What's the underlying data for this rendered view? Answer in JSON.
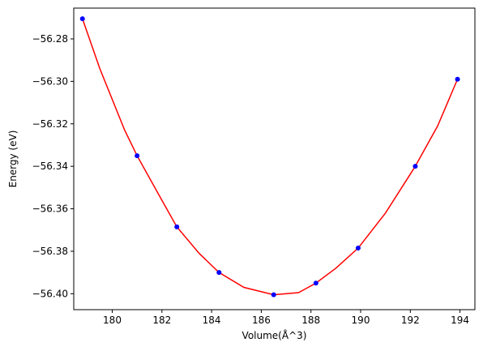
{
  "chart_data": {
    "type": "scatter",
    "xlabel": "Volume(Å^3)",
    "ylabel": "Energy (eV)",
    "xlim": [
      178.45,
      194.6
    ],
    "ylim": [
      -56.4075,
      -56.2655
    ],
    "x_ticks": [
      {
        "value": 180,
        "label": "180"
      },
      {
        "value": 182,
        "label": "182"
      },
      {
        "value": 184,
        "label": "184"
      },
      {
        "value": 186,
        "label": "186"
      },
      {
        "value": 188,
        "label": "188"
      },
      {
        "value": 190,
        "label": "190"
      },
      {
        "value": 192,
        "label": "192"
      },
      {
        "value": 194,
        "label": "194"
      }
    ],
    "y_ticks": [
      {
        "value": -56.28,
        "label": "−56.28"
      },
      {
        "value": -56.3,
        "label": "−56.30"
      },
      {
        "value": -56.32,
        "label": "−56.32"
      },
      {
        "value": -56.34,
        "label": "−56.34"
      },
      {
        "value": -56.36,
        "label": "−56.36"
      },
      {
        "value": -56.38,
        "label": "−56.38"
      },
      {
        "value": -56.4,
        "label": "−56.40"
      }
    ],
    "grid": false,
    "series": [
      {
        "kind": "points",
        "color": "#0000ff",
        "x": [
          178.8,
          181.0,
          182.6,
          184.3,
          186.5,
          188.2,
          189.9,
          192.2,
          193.9
        ],
        "y": [
          -56.2705,
          -56.335,
          -56.3685,
          -56.39,
          -56.4005,
          -56.395,
          -56.3785,
          -56.34,
          -56.299
        ]
      },
      {
        "kind": "fit",
        "color": "#ff0000",
        "x": [
          178.8,
          179.5,
          180.5,
          181.0,
          182.0,
          182.6,
          183.5,
          184.3,
          185.3,
          186.5,
          187.5,
          188.2,
          189.0,
          189.9,
          191.0,
          192.2,
          193.1,
          193.9
        ],
        "y": [
          -56.2705,
          -56.294,
          -56.323,
          -56.335,
          -56.356,
          -56.3685,
          -56.381,
          -56.39,
          -56.397,
          -56.4005,
          -56.3995,
          -56.395,
          -56.388,
          -56.3785,
          -56.362,
          -56.34,
          -56.321,
          -56.299
        ]
      }
    ]
  }
}
